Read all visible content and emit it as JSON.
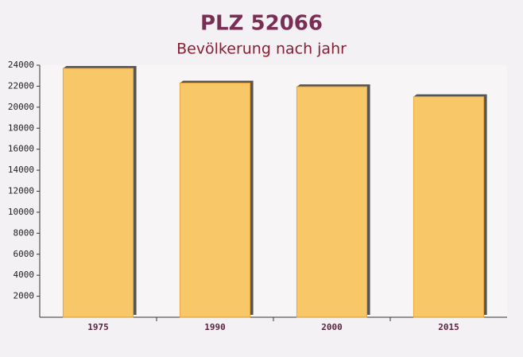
{
  "chart_data": {
    "type": "bar",
    "title": "PLZ 52066",
    "subtitle": "Bevölkerung nach jahr",
    "categories": [
      "1975",
      "1990",
      "2000",
      "2015"
    ],
    "values": [
      23700,
      22300,
      21950,
      21000
    ],
    "color": "#f9c55c",
    "ylim": [
      0,
      24000
    ],
    "yticks": [
      2000,
      4000,
      6000,
      8000,
      10000,
      12000,
      14000,
      16000,
      18000,
      20000,
      22000,
      24000
    ],
    "grid": false
  }
}
